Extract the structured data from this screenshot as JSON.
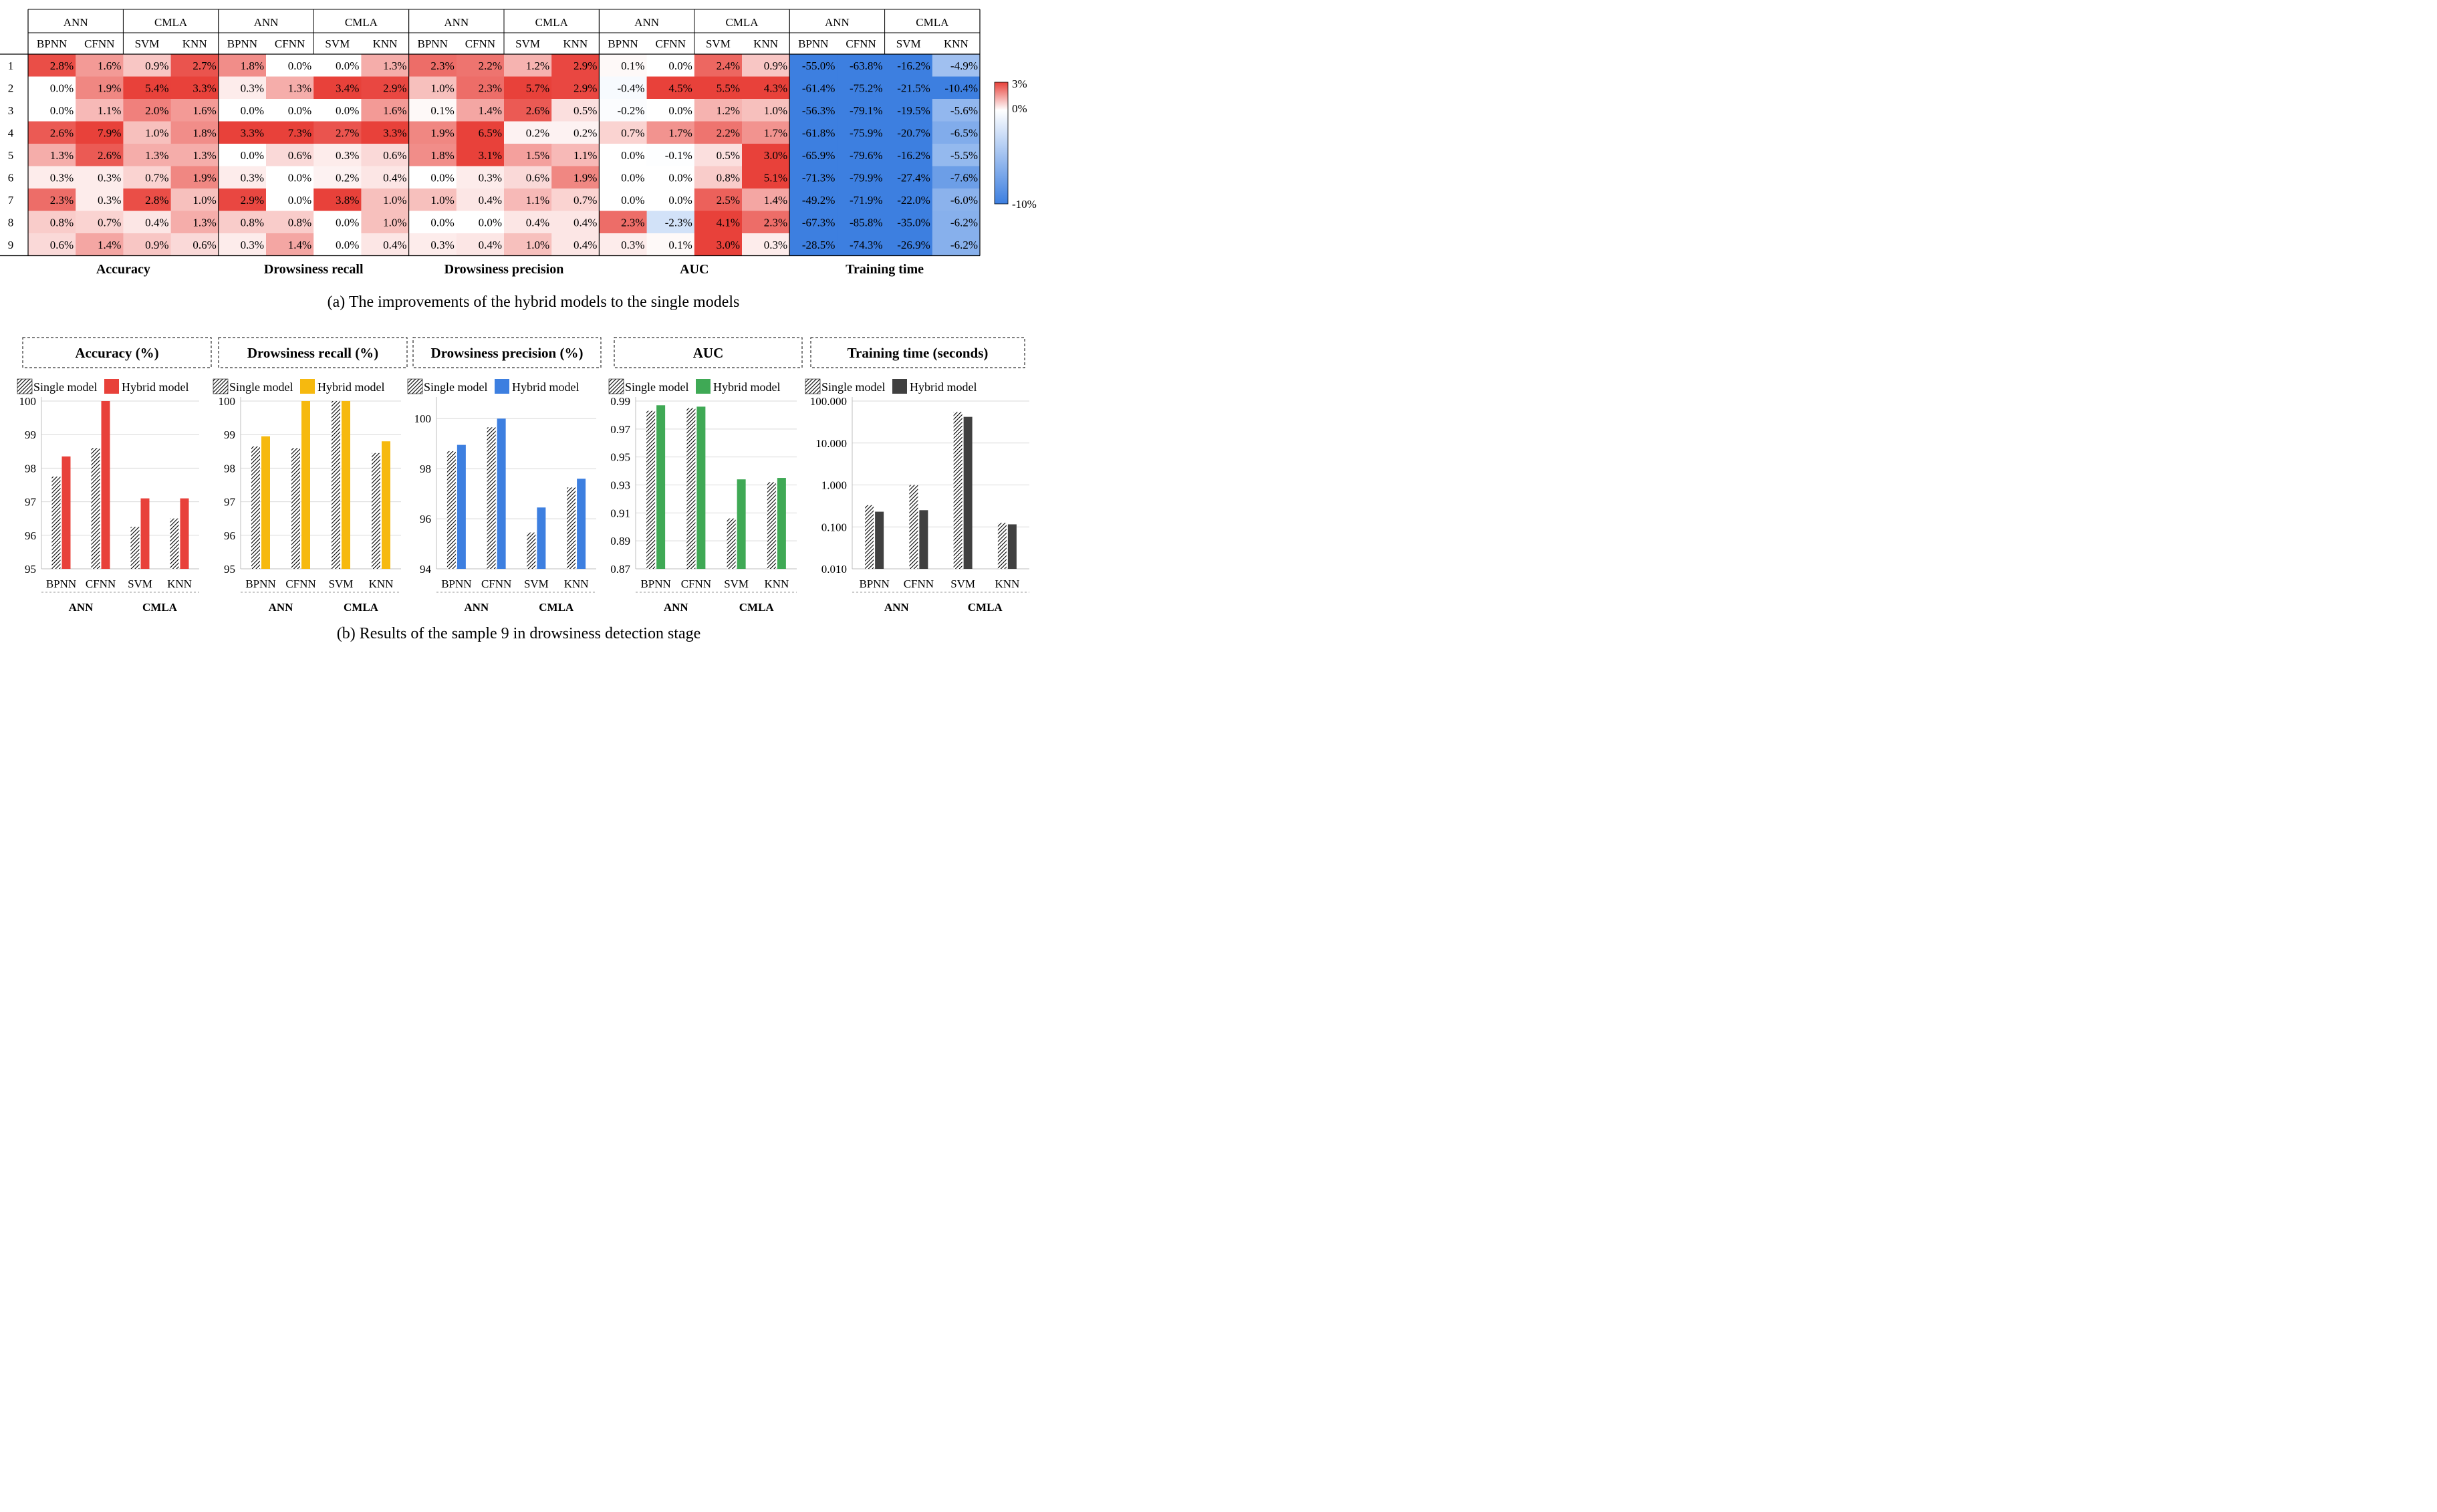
{
  "heatmap": {
    "groups": [
      "ANN",
      "CMLA"
    ],
    "models": [
      "BPNN",
      "CFNN",
      "SVM",
      "KNN"
    ],
    "rows": [
      "1",
      "2",
      "3",
      "4",
      "5",
      "6",
      "7",
      "8",
      "9"
    ],
    "scale": {
      "max": 3,
      "mid": 0,
      "min": -10,
      "max_label": "3%",
      "mid_label": "0%",
      "min_label": "-10%",
      "colors": {
        "high": "#e8413a",
        "mid": "#ffffff",
        "low": "#3d7fe0"
      }
    },
    "metrics": [
      {
        "name": "Accuracy",
        "values": [
          [
            2.8,
            1.6,
            0.9,
            2.7
          ],
          [
            0.0,
            1.9,
            5.4,
            3.3
          ],
          [
            0.0,
            1.1,
            2.0,
            1.6
          ],
          [
            2.6,
            7.9,
            1.0,
            1.8
          ],
          [
            1.3,
            2.6,
            1.3,
            1.3
          ],
          [
            0.3,
            0.3,
            0.7,
            1.9
          ],
          [
            2.3,
            0.3,
            2.8,
            1.0
          ],
          [
            0.8,
            0.7,
            0.4,
            1.3
          ],
          [
            0.6,
            1.4,
            0.9,
            0.6
          ]
        ]
      },
      {
        "name": "Drowsiness recall",
        "values": [
          [
            1.8,
            0.0,
            0.0,
            1.3
          ],
          [
            0.3,
            1.3,
            3.4,
            2.9
          ],
          [
            0.0,
            0.0,
            0.0,
            1.6
          ],
          [
            3.3,
            7.3,
            2.7,
            3.3
          ],
          [
            0.0,
            0.6,
            0.3,
            0.6
          ],
          [
            0.3,
            0.0,
            0.2,
            0.4
          ],
          [
            2.9,
            0.0,
            3.8,
            1.0
          ],
          [
            0.8,
            0.8,
            0.0,
            1.0
          ],
          [
            0.3,
            1.4,
            0.0,
            0.4
          ]
        ]
      },
      {
        "name": "Drowsiness precision",
        "values": [
          [
            2.3,
            2.2,
            1.2,
            2.9
          ],
          [
            1.0,
            2.3,
            5.7,
            2.9
          ],
          [
            0.1,
            1.4,
            2.6,
            0.5
          ],
          [
            1.9,
            6.5,
            0.2,
            0.2
          ],
          [
            1.8,
            3.1,
            1.5,
            1.1
          ],
          [
            0.0,
            0.3,
            0.6,
            1.9
          ],
          [
            1.0,
            0.4,
            1.1,
            0.7
          ],
          [
            0.0,
            0.0,
            0.4,
            0.4
          ],
          [
            0.3,
            0.4,
            1.0,
            0.4
          ]
        ]
      },
      {
        "name": "AUC",
        "values": [
          [
            0.1,
            0.0,
            2.4,
            0.9
          ],
          [
            -0.4,
            4.5,
            5.5,
            4.3
          ],
          [
            -0.2,
            0.0,
            1.2,
            1.0
          ],
          [
            0.7,
            1.7,
            2.2,
            1.7
          ],
          [
            0.0,
            -0.1,
            0.5,
            3.0
          ],
          [
            0.0,
            0.0,
            0.8,
            5.1
          ],
          [
            0.0,
            0.0,
            2.5,
            1.4
          ],
          [
            2.3,
            -2.3,
            4.1,
            2.3
          ],
          [
            0.3,
            0.1,
            3.0,
            0.3
          ]
        ]
      },
      {
        "name": "Training  time",
        "values": [
          [
            -55.0,
            -63.8,
            -16.2,
            -4.9
          ],
          [
            -61.4,
            -75.2,
            -21.5,
            -10.4
          ],
          [
            -56.3,
            -79.1,
            -19.5,
            -5.6
          ],
          [
            -61.8,
            -75.9,
            -20.7,
            -6.5
          ],
          [
            -65.9,
            -79.6,
            -16.2,
            -5.5
          ],
          [
            -71.3,
            -79.9,
            -27.4,
            -7.6
          ],
          [
            -49.2,
            -71.9,
            -22.0,
            -6.0
          ],
          [
            -67.3,
            -85.8,
            -35.0,
            -6.2
          ],
          [
            -28.5,
            -74.3,
            -26.9,
            -6.2
          ]
        ]
      }
    ]
  },
  "caption_a": "(a) The improvements of the hybrid models to the single models",
  "caption_b": "(b) Results of the sample 9 in drowsiness detection stage",
  "chart_data": [
    {
      "type": "bar",
      "title": "Accuracy (%)",
      "categories": [
        "BPNN",
        "CFNN",
        "SVM",
        "KNN"
      ],
      "groups": [
        {
          "label": "ANN",
          "span": [
            0,
            1
          ]
        },
        {
          "label": "CMLA",
          "span": [
            2,
            3
          ]
        }
      ],
      "ylim": [
        95,
        100
      ],
      "yticks": [
        95,
        96,
        97,
        98,
        99,
        100
      ],
      "ytick_labels": [
        "95",
        "96",
        "97",
        "98",
        "99",
        "100"
      ],
      "scale": "linear",
      "series": [
        {
          "name": "Single model",
          "values": [
            97.75,
            98.6,
            96.25,
            96.5
          ],
          "pattern": "hatch"
        },
        {
          "name": "Hybrid model",
          "values": [
            98.35,
            100,
            97.1,
            97.1
          ],
          "color": "#e8413a"
        }
      ]
    },
    {
      "type": "bar",
      "title": "Drowsiness recall (%)",
      "categories": [
        "BPNN",
        "CFNN",
        "SVM",
        "KNN"
      ],
      "groups": [
        {
          "label": "ANN",
          "span": [
            0,
            1
          ]
        },
        {
          "label": "CMLA",
          "span": [
            2,
            3
          ]
        }
      ],
      "ylim": [
        95,
        100
      ],
      "yticks": [
        95,
        96,
        97,
        98,
        99,
        100
      ],
      "ytick_labels": [
        "95",
        "96",
        "97",
        "98",
        "99",
        "100"
      ],
      "scale": "linear",
      "series": [
        {
          "name": "Single model",
          "values": [
            98.65,
            98.6,
            100,
            98.45
          ],
          "pattern": "hatch"
        },
        {
          "name": "Hybrid model",
          "values": [
            98.95,
            100,
            100,
            98.8
          ],
          "color": "#f6b90f"
        }
      ]
    },
    {
      "type": "bar",
      "title": "Drowsiness precision (%)",
      "categories": [
        "BPNN",
        "CFNN",
        "SVM",
        "KNN"
      ],
      "groups": [
        {
          "label": "ANN",
          "span": [
            0,
            1
          ]
        },
        {
          "label": "CMLA",
          "span": [
            2,
            3
          ]
        }
      ],
      "ylim": [
        94,
        100.7
      ],
      "yticks": [
        94,
        96,
        98,
        100
      ],
      "ytick_labels": [
        "94",
        "96",
        "98",
        "100"
      ],
      "scale": "linear",
      "series": [
        {
          "name": "Single model",
          "values": [
            98.7,
            99.65,
            95.45,
            97.25
          ],
          "pattern": "hatch"
        },
        {
          "name": "Hybrid model",
          "values": [
            98.95,
            100,
            96.45,
            97.6
          ],
          "color": "#3d7fe0"
        }
      ]
    },
    {
      "type": "bar",
      "title": "AUC",
      "categories": [
        "BPNN",
        "CFNN",
        "SVM",
        "KNN"
      ],
      "groups": [
        {
          "label": "ANN",
          "span": [
            0,
            1
          ]
        },
        {
          "label": "CMLA",
          "span": [
            2,
            3
          ]
        }
      ],
      "ylim": [
        0.87,
        0.99
      ],
      "yticks": [
        0.87,
        0.89,
        0.91,
        0.93,
        0.95,
        0.97,
        0.99
      ],
      "ytick_labels": [
        "0.87",
        "0.89",
        "0.91",
        "0.93",
        "0.95",
        "0.97",
        "0.99"
      ],
      "scale": "linear",
      "series": [
        {
          "name": "Single model",
          "values": [
            0.983,
            0.985,
            0.906,
            0.932
          ],
          "pattern": "hatch"
        },
        {
          "name": "Hybrid model",
          "values": [
            0.987,
            0.986,
            0.934,
            0.935
          ],
          "color": "#3fa955"
        }
      ]
    },
    {
      "type": "bar",
      "title": "Training  time (seconds)",
      "categories": [
        "BPNN",
        "CFNN",
        "SVM",
        "KNN"
      ],
      "groups": [
        {
          "label": "ANN",
          "span": [
            0,
            1
          ]
        },
        {
          "label": "CMLA",
          "span": [
            2,
            3
          ]
        }
      ],
      "ylim": [
        0.01,
        100
      ],
      "yticks": [
        0.01,
        0.1,
        1,
        10,
        100
      ],
      "ytick_labels": [
        "0.010",
        "0.100",
        "1.000",
        "10.000",
        "100.000"
      ],
      "scale": "log",
      "series": [
        {
          "name": "Single model",
          "values": [
            0.33,
            1.0,
            55,
            0.125
          ],
          "pattern": "hatch"
        },
        {
          "name": "Hybrid model",
          "values": [
            0.23,
            0.25,
            42,
            0.115
          ],
          "color": "#404040"
        }
      ]
    }
  ]
}
